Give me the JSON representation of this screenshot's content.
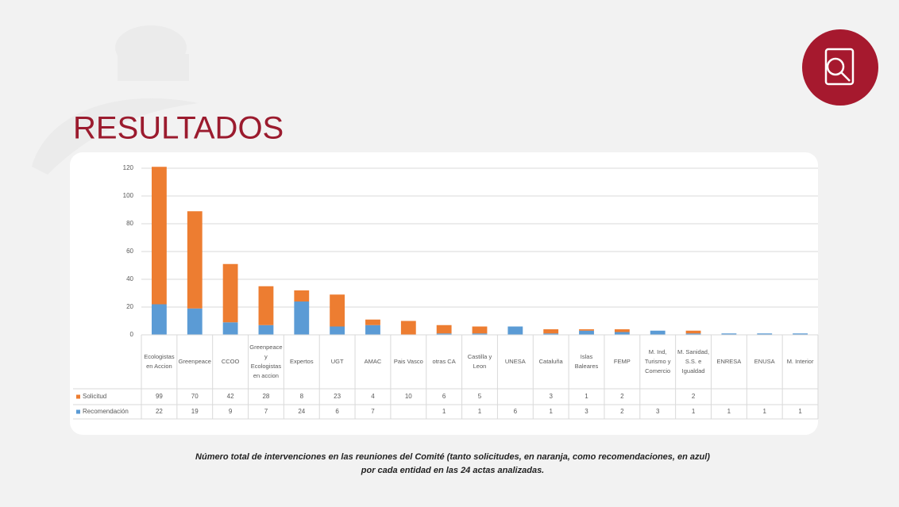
{
  "slide": {
    "heading": "RESULTADOS",
    "caption": [
      "Número total de intervenciones en las reuniones del Comité (tanto solicitudes, en naranja, como recomendaciones, en azul)",
      "por cada entidad en las 24 actas analizadas."
    ]
  },
  "chart_data": {
    "type": "stacked-bar",
    "categories": [
      "Ecologistas en Accion",
      "Greenpeace",
      "CCOO",
      "Greenpeace y Ecologistas en accion",
      "Expertos",
      "UGT",
      "AMAC",
      "Pais Vasco",
      "otras CA",
      "Castilla y Leon",
      "UNESA",
      "Cataluña",
      "Islas Baleares",
      "FEMP",
      "M. Ind, Turismo y Comercio",
      "M. Sanidad, S.S. e Igualdad",
      "ENRESA",
      "ENUSA",
      "M. Interior"
    ],
    "series": [
      {
        "name": "Solicitud",
        "color": "#ed7d31",
        "values": [
          99,
          70,
          42,
          28,
          8,
          23,
          4,
          10,
          6,
          5,
          null,
          3,
          1,
          2,
          null,
          2,
          null,
          null,
          null
        ]
      },
      {
        "name": "Recomendación",
        "color": "#5b9bd5",
        "values": [
          22,
          19,
          9,
          7,
          24,
          6,
          7,
          null,
          1,
          1,
          6,
          1,
          3,
          2,
          3,
          1,
          1,
          1,
          1
        ]
      }
    ],
    "ylim": [
      0,
      120
    ],
    "yticks": [
      0,
      20,
      40,
      60,
      80,
      100,
      120
    ],
    "grid": true
  }
}
